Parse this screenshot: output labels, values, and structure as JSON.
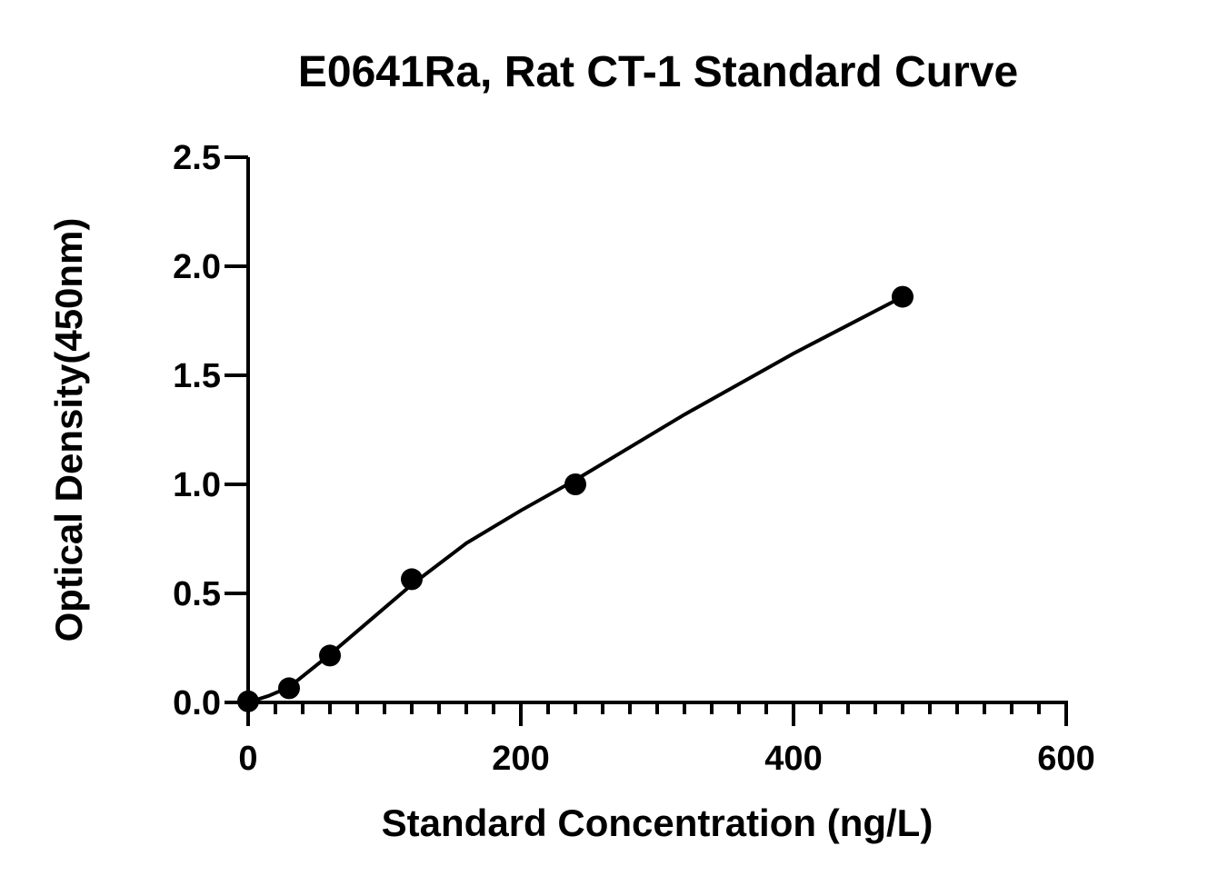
{
  "chart_data": {
    "type": "scatter",
    "title": "E0641Ra, Rat CT-1 Standard Curve",
    "xlabel": "Standard Concentration (ng/L)",
    "ylabel": "Optical Density(450nm)",
    "xlim": [
      0,
      600
    ],
    "ylim": [
      0,
      2.5
    ],
    "x_ticks": [
      0,
      200,
      400,
      600
    ],
    "x_tick_labels": [
      "0",
      "200",
      "400",
      "600"
    ],
    "x_minor_step": 20,
    "y_ticks": [
      0,
      0.5,
      1.0,
      1.5,
      2.0,
      2.5
    ],
    "y_tick_labels": [
      "0.0",
      "0.5",
      "1.0",
      "1.5",
      "2.0",
      "2.5"
    ],
    "grid": false,
    "legend": "none",
    "series": [
      {
        "points": [
          {
            "x": 0,
            "y": 0.005
          },
          {
            "x": 30,
            "y": 0.065
          },
          {
            "x": 60,
            "y": 0.215
          },
          {
            "x": 120,
            "y": 0.565
          },
          {
            "x": 240,
            "y": 1.0
          },
          {
            "x": 480,
            "y": 1.86
          }
        ],
        "fit_curve": {
          "x": [
            0,
            15,
            30,
            60,
            90,
            120,
            160,
            200,
            240,
            280,
            320,
            360,
            400,
            440,
            480
          ],
          "y": [
            0.0,
            0.03,
            0.07,
            0.22,
            0.38,
            0.54,
            0.73,
            0.88,
            1.02,
            1.17,
            1.32,
            1.46,
            1.6,
            1.73,
            1.86
          ]
        },
        "color": "#000000"
      }
    ]
  }
}
